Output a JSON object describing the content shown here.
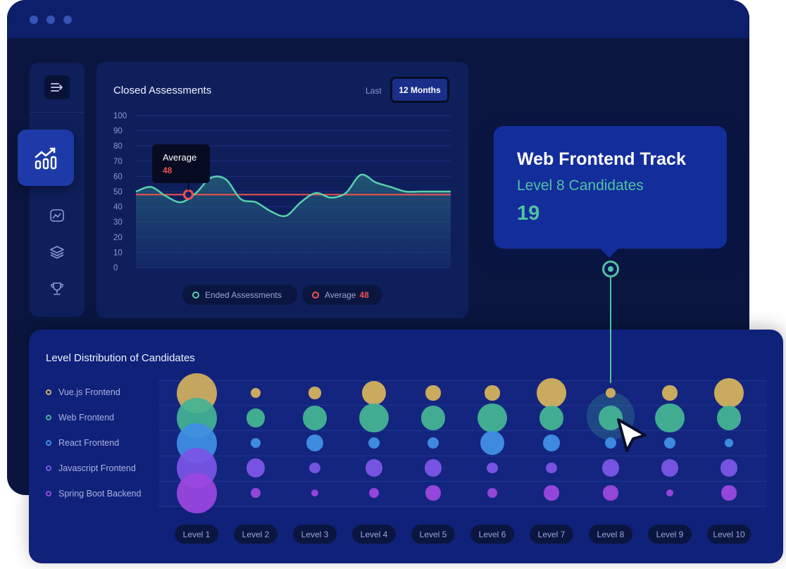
{
  "window": {
    "sidebar": {
      "icons": [
        "menu-icon",
        "bar-chart-icon",
        "trend-chart-icon",
        "layers-icon",
        "trophy-icon"
      ]
    }
  },
  "closed_assessments": {
    "title": "Closed Assessments",
    "period_prefix": "Last",
    "period": "12 Months",
    "tooltip": {
      "label": "Average",
      "value": "48"
    },
    "legend": {
      "ended": "Ended Assessments",
      "average_label": "Average",
      "average_value": "48"
    }
  },
  "chart_data": {
    "type": "area",
    "x": [
      0,
      1,
      2,
      3,
      4,
      5,
      6,
      7,
      8,
      9,
      10,
      11,
      12,
      13,
      14,
      15,
      16,
      17,
      18,
      19,
      20,
      21
    ],
    "ylim": [
      0,
      100
    ],
    "yticks": [
      "100",
      "90",
      "80",
      "70",
      "60",
      "50",
      "40",
      "30",
      "20",
      "10",
      "0"
    ],
    "series": [
      {
        "name": "Ended Assessments",
        "color": "#58d1ad",
        "values": [
          50,
          53,
          47,
          43,
          49,
          59,
          58,
          45,
          43,
          37,
          34,
          43,
          49,
          46,
          49,
          61,
          56,
          53,
          50,
          50,
          50,
          50
        ]
      },
      {
        "name": "Average",
        "color": "#ef5350",
        "values": [
          48,
          48,
          48,
          48,
          48,
          48,
          48,
          48,
          48,
          48,
          48,
          48,
          48,
          48,
          48,
          48,
          48,
          48,
          48,
          48,
          48,
          48
        ]
      }
    ],
    "grid": true
  },
  "info_card": {
    "title": "Web Frontend Track",
    "subtitle": "Level 8 Candidates",
    "value": "19"
  },
  "distribution": {
    "title": "Level Distribution of Candidates",
    "rows": [
      {
        "label": "Vue.js Frontend",
        "color": "#d4b15e"
      },
      {
        "label": "Web Frontend",
        "color": "#43b394"
      },
      {
        "label": "React Frontend",
        "color": "#3f8fe6"
      },
      {
        "label": "Javascript Frontend",
        "color": "#7b55e6"
      },
      {
        "label": "Spring Boot Backend",
        "color": "#9b47df"
      }
    ],
    "levels": [
      "Level 1",
      "Level 2",
      "Level 3",
      "Level 4",
      "Level 5",
      "Level 6",
      "Level 7",
      "Level 8",
      "Level 9",
      "Level 10"
    ],
    "sizes": [
      [
        1.0,
        0.25,
        0.3,
        0.6,
        0.37,
        0.37,
        0.73,
        0.25,
        0.37,
        0.73
      ],
      [
        1.0,
        0.47,
        0.6,
        0.73,
        0.6,
        0.73,
        0.6,
        0.6,
        0.73,
        0.6
      ],
      [
        1.0,
        0.25,
        0.43,
        0.28,
        0.28,
        0.6,
        0.43,
        0.28,
        0.28,
        0.2
      ],
      [
        1.0,
        0.47,
        0.28,
        0.43,
        0.43,
        0.28,
        0.28,
        0.43,
        0.43,
        0.43
      ],
      [
        1.0,
        0.25,
        0.17,
        0.25,
        0.37,
        0.25,
        0.37,
        0.37,
        0.17,
        0.37
      ]
    ],
    "highlight": {
      "row": "Web Frontend",
      "level": "Level 8"
    }
  }
}
